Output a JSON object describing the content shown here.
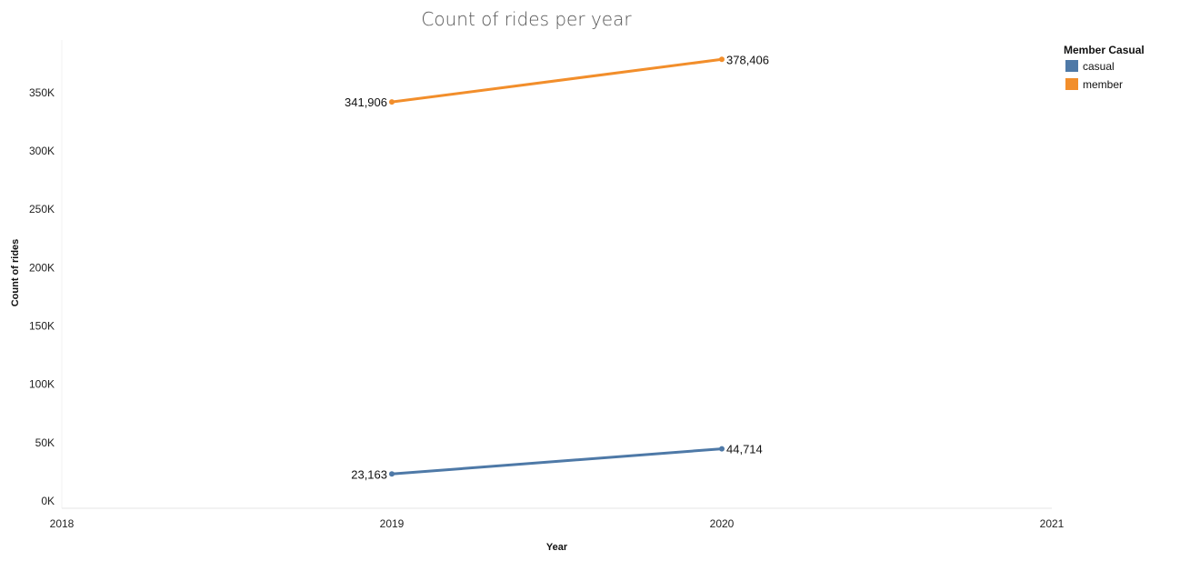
{
  "chart_data": {
    "type": "line",
    "title": "Count of rides per year",
    "xlabel": "Year",
    "ylabel": "Count of rides",
    "x_ticks": [
      "2018",
      "2019",
      "2020",
      "2021"
    ],
    "y_ticks": [
      "0K",
      "50K",
      "100K",
      "150K",
      "200K",
      "250K",
      "300K",
      "350K"
    ],
    "xlim": [
      2018,
      2021
    ],
    "ylim": [
      0,
      395000
    ],
    "grid": false,
    "legend": {
      "title": "Member Casual",
      "position": "top-right"
    },
    "series": [
      {
        "name": "casual",
        "color": "#4e79a7",
        "x": [
          2019,
          2020
        ],
        "values": [
          23163,
          44714
        ],
        "labels": [
          "23,163",
          "44,714"
        ]
      },
      {
        "name": "member",
        "color": "#f28e2b",
        "x": [
          2019,
          2020
        ],
        "values": [
          341906,
          378406
        ],
        "labels": [
          "341,906",
          "378,406"
        ]
      }
    ]
  }
}
